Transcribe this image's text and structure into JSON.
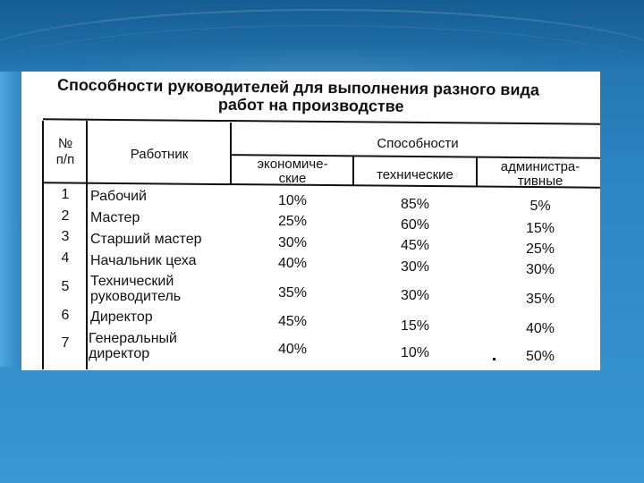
{
  "document": {
    "title_line1": "Способности руководителей для выполнения разного вида",
    "title_line2": "работ на производстве",
    "headers": {
      "num_line1": "№",
      "num_line2": "п/п",
      "worker": "Работник",
      "abilities": "Способности",
      "economic_line1": "экономиче-",
      "economic_line2": "ские",
      "technical": "технические",
      "admin_line1": "администра-",
      "admin_line2": "тивные"
    },
    "rows": [
      {
        "num": "1",
        "worker_line1": "Рабочий",
        "worker_line2": "",
        "economic": "10%",
        "technical": "85%",
        "admin": "5%"
      },
      {
        "num": "2",
        "worker_line1": "Мастер",
        "worker_line2": "",
        "economic": "25%",
        "technical": "60%",
        "admin": "15%"
      },
      {
        "num": "3",
        "worker_line1": "Старший мастер",
        "worker_line2": "",
        "economic": "30%",
        "technical": "45%",
        "admin": "25%"
      },
      {
        "num": "4",
        "worker_line1": "Начальник цеха",
        "worker_line2": "",
        "economic": "40%",
        "technical": "30%",
        "admin": "30%"
      },
      {
        "num": "5",
        "worker_line1": "Технический",
        "worker_line2": "руководитель",
        "economic": "35%",
        "technical": "30%",
        "admin": "35%"
      },
      {
        "num": "6",
        "worker_line1": "Директор",
        "worker_line2": "",
        "economic": "45%",
        "technical": "15%",
        "admin": "40%"
      },
      {
        "num": "7",
        "worker_line1": "Генеральный",
        "worker_line2": "директор",
        "economic": "40%",
        "technical": "10%",
        "admin": "50%"
      }
    ]
  }
}
